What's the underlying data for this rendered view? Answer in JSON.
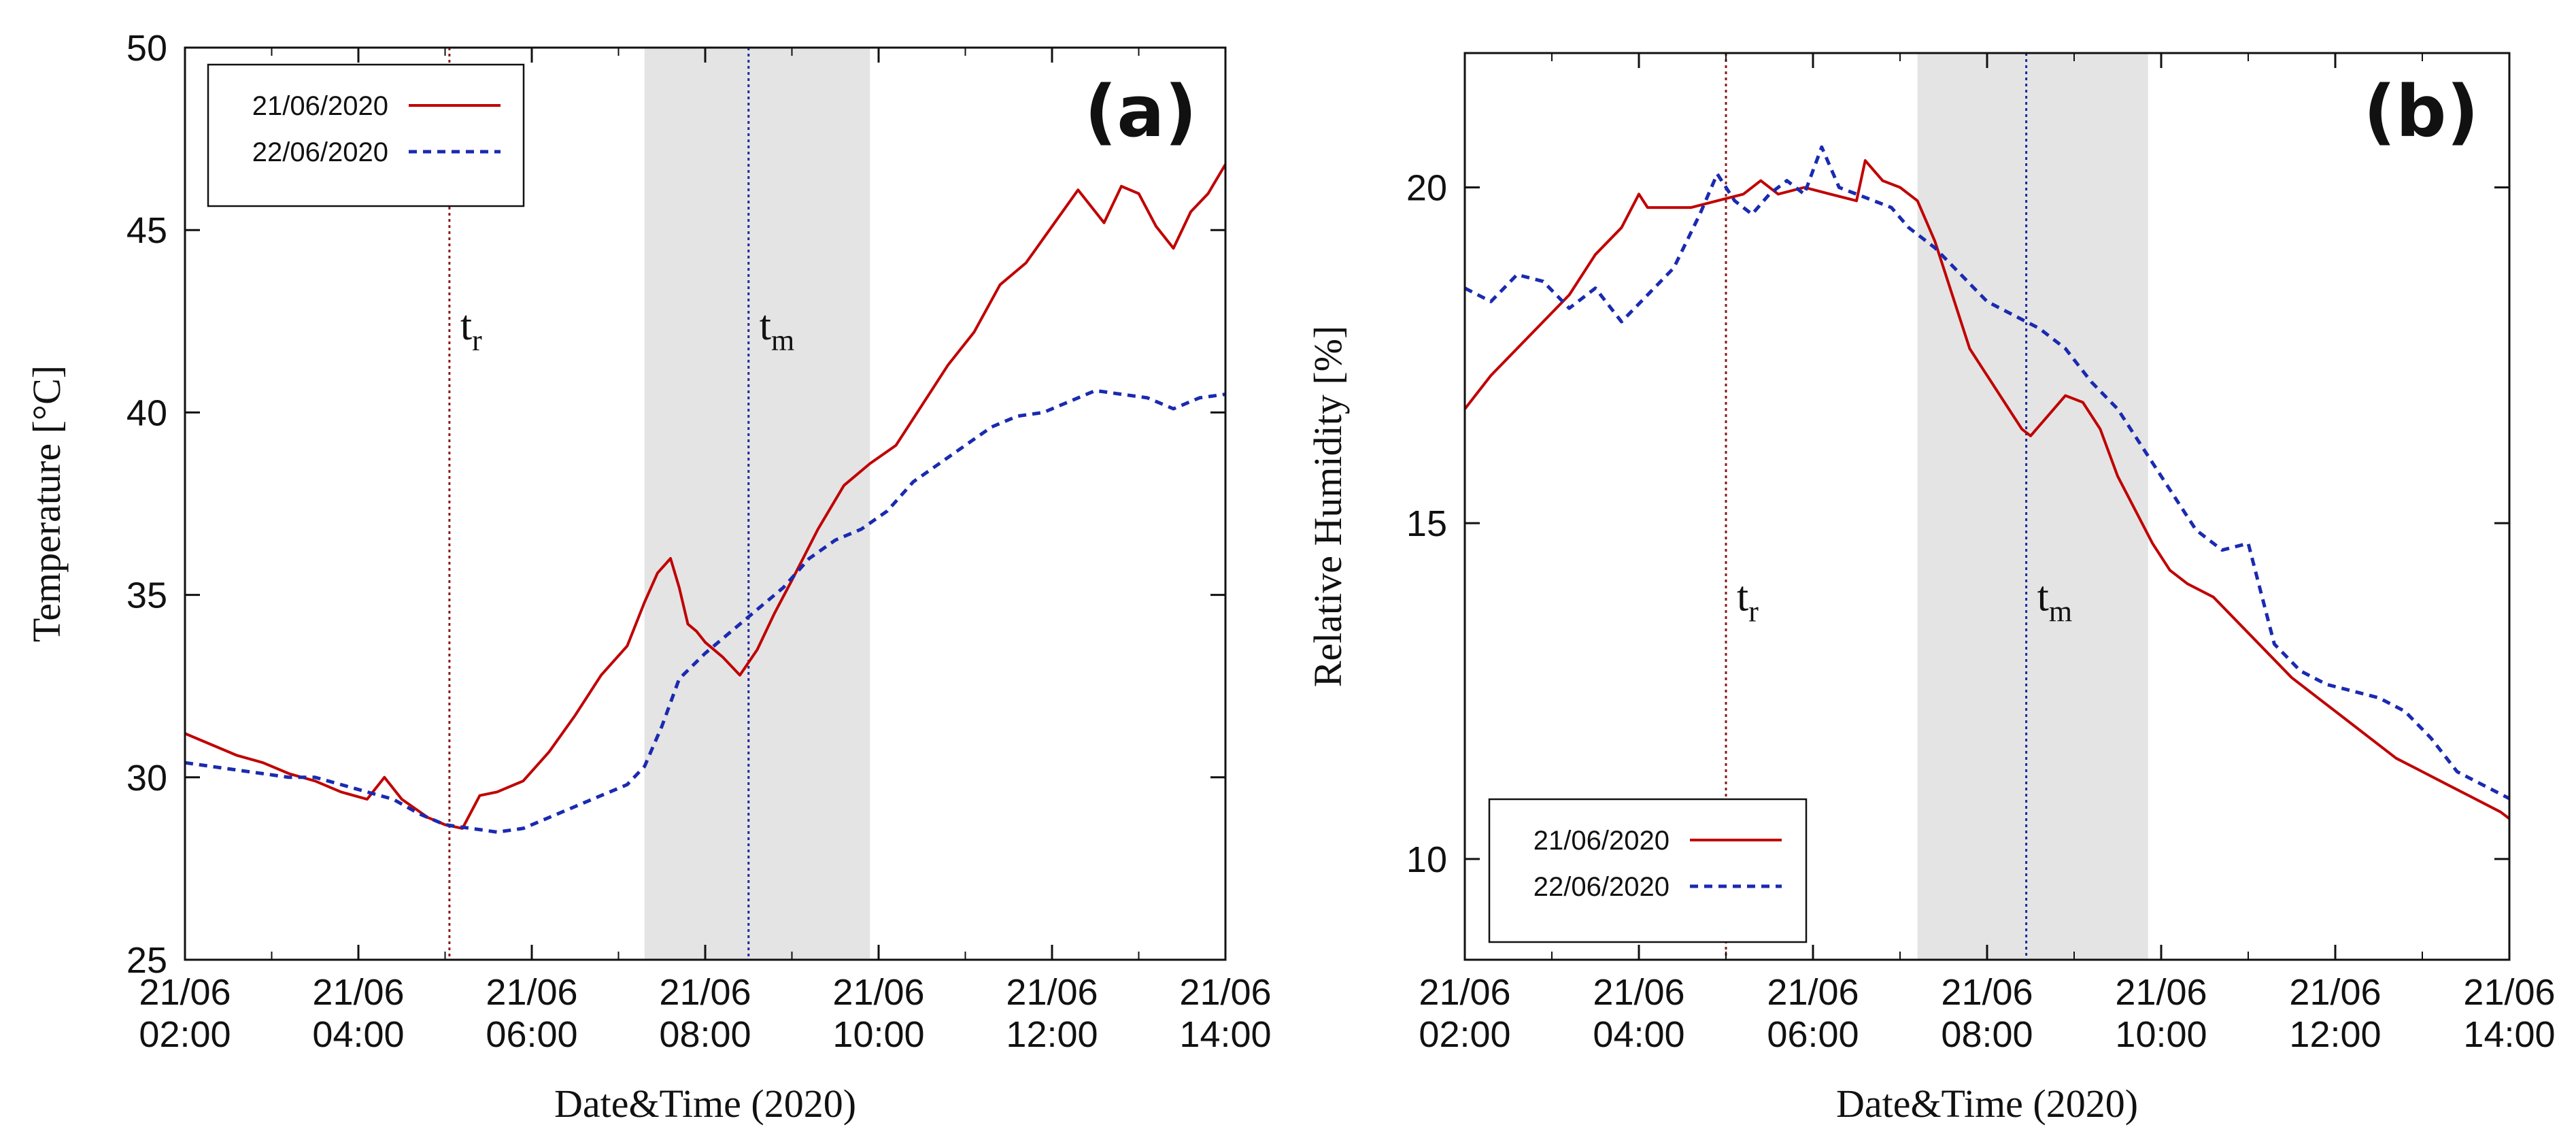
{
  "chart_data": [
    {
      "type": "line",
      "panel_label": "(a)",
      "xlabel": "Date&Time (2020)",
      "ylabel": "Temperature [°C]",
      "xlim": [
        2,
        14
      ],
      "ylim": [
        25,
        50
      ],
      "yticks": [
        25,
        30,
        35,
        40,
        45,
        50
      ],
      "xticks": [
        {
          "x": 2,
          "date": "21/06",
          "time": "02:00"
        },
        {
          "x": 4,
          "date": "21/06",
          "time": "04:00"
        },
        {
          "x": 6,
          "date": "21/06",
          "time": "06:00"
        },
        {
          "x": 8,
          "date": "21/06",
          "time": "08:00"
        },
        {
          "x": 10,
          "date": "21/06",
          "time": "10:00"
        },
        {
          "x": 12,
          "date": "21/06",
          "time": "12:00"
        },
        {
          "x": 14,
          "date": "21/06",
          "time": "14:00"
        }
      ],
      "shaded_region": [
        7.3,
        9.9
      ],
      "markers": [
        {
          "name": "t",
          "sub": "r",
          "x": 5.05,
          "color": "#8b1a1a",
          "label_y": 42
        },
        {
          "name": "t",
          "sub": "m",
          "x": 8.5,
          "color": "#1a2a9a",
          "label_y": 42
        }
      ],
      "legend": {
        "position": "top-left"
      },
      "series": [
        {
          "name": "21/06/2020",
          "color": "#c00000",
          "style": "solid",
          "x": [
            2.0,
            2.3,
            2.6,
            2.9,
            3.2,
            3.5,
            3.8,
            4.1,
            4.3,
            4.5,
            4.8,
            5.0,
            5.2,
            5.4,
            5.6,
            5.9,
            6.2,
            6.5,
            6.8,
            7.1,
            7.3,
            7.45,
            7.6,
            7.7,
            7.8,
            7.9,
            8.0,
            8.2,
            8.4,
            8.6,
            8.8,
            9.0,
            9.3,
            9.6,
            9.9,
            10.2,
            10.5,
            10.8,
            11.1,
            11.4,
            11.7,
            12.0,
            12.3,
            12.6,
            12.8,
            13.0,
            13.2,
            13.4,
            13.6,
            13.8,
            14.0
          ],
          "y": [
            31.2,
            30.9,
            30.6,
            30.4,
            30.1,
            29.9,
            29.6,
            29.4,
            30.0,
            29.4,
            28.9,
            28.7,
            28.6,
            29.5,
            29.6,
            29.9,
            30.7,
            31.7,
            32.8,
            33.6,
            34.8,
            35.6,
            36.0,
            35.2,
            34.2,
            34.0,
            33.7,
            33.3,
            32.8,
            33.5,
            34.5,
            35.4,
            36.8,
            38.0,
            38.6,
            39.1,
            40.2,
            41.3,
            42.2,
            43.5,
            44.1,
            45.1,
            46.1,
            45.2,
            46.2,
            46.0,
            45.1,
            44.5,
            45.5,
            46.0,
            46.8
          ]
        },
        {
          "name": "22/06/2020",
          "color": "#1a2ab0",
          "style": "dashed",
          "x": [
            2.0,
            2.3,
            2.6,
            2.9,
            3.2,
            3.5,
            3.8,
            4.1,
            4.4,
            4.7,
            5.0,
            5.3,
            5.6,
            5.9,
            6.2,
            6.5,
            6.8,
            7.1,
            7.3,
            7.5,
            7.7,
            8.0,
            8.3,
            8.6,
            8.9,
            9.2,
            9.5,
            9.8,
            10.1,
            10.4,
            10.7,
            11.0,
            11.3,
            11.6,
            11.9,
            12.2,
            12.5,
            12.8,
            13.1,
            13.4,
            13.7,
            14.0
          ],
          "y": [
            30.4,
            30.3,
            30.2,
            30.1,
            30.0,
            30.0,
            29.8,
            29.6,
            29.4,
            29.0,
            28.7,
            28.6,
            28.5,
            28.6,
            28.9,
            29.2,
            29.5,
            29.8,
            30.3,
            31.4,
            32.7,
            33.4,
            34.0,
            34.6,
            35.2,
            36.0,
            36.5,
            36.8,
            37.3,
            38.1,
            38.6,
            39.1,
            39.6,
            39.9,
            40.0,
            40.3,
            40.6,
            40.5,
            40.4,
            40.1,
            40.4,
            40.5
          ]
        }
      ]
    },
    {
      "type": "line",
      "panel_label": "(b)",
      "xlabel": "Date&Time (2020)",
      "ylabel": "Relative Humidity [%]",
      "xlim": [
        2,
        14
      ],
      "ylim": [
        8.5,
        22
      ],
      "yticks": [
        10,
        15,
        20
      ],
      "xticks": [
        {
          "x": 2,
          "date": "21/06",
          "time": "02:00"
        },
        {
          "x": 4,
          "date": "21/06",
          "time": "04:00"
        },
        {
          "x": 6,
          "date": "21/06",
          "time": "06:00"
        },
        {
          "x": 8,
          "date": "21/06",
          "time": "08:00"
        },
        {
          "x": 10,
          "date": "21/06",
          "time": "10:00"
        },
        {
          "x": 12,
          "date": "21/06",
          "time": "12:00"
        },
        {
          "x": 14,
          "date": "21/06",
          "time": "14:00"
        }
      ],
      "shaded_region": [
        7.2,
        9.85
      ],
      "markers": [
        {
          "name": "t",
          "sub": "r",
          "x": 5.0,
          "color": "#8b1a1a",
          "label_y": 13.7
        },
        {
          "name": "t",
          "sub": "m",
          "x": 8.45,
          "color": "#1a2a9a",
          "label_y": 13.7
        }
      ],
      "legend": {
        "position": "bottom-left"
      },
      "series": [
        {
          "name": "21/06/2020",
          "color": "#c00000",
          "style": "solid",
          "x": [
            2.0,
            2.3,
            2.6,
            2.9,
            3.2,
            3.5,
            3.8,
            4.0,
            4.1,
            4.3,
            4.6,
            4.9,
            5.2,
            5.4,
            5.6,
            5.9,
            6.2,
            6.5,
            6.6,
            6.8,
            7.0,
            7.2,
            7.4,
            7.6,
            7.8,
            8.0,
            8.2,
            8.4,
            8.5,
            8.7,
            8.9,
            9.1,
            9.3,
            9.5,
            9.7,
            9.9,
            10.1,
            10.3,
            10.6,
            10.9,
            11.2,
            11.5,
            11.8,
            12.1,
            12.4,
            12.7,
            13.0,
            13.3,
            13.6,
            13.9,
            14.0
          ],
          "y": [
            16.7,
            17.2,
            17.6,
            18.0,
            18.4,
            19.0,
            19.4,
            19.9,
            19.7,
            19.7,
            19.7,
            19.8,
            19.9,
            20.1,
            19.9,
            20.0,
            19.9,
            19.8,
            20.4,
            20.1,
            20.0,
            19.8,
            19.2,
            18.4,
            17.6,
            17.2,
            16.8,
            16.4,
            16.3,
            16.6,
            16.9,
            16.8,
            16.4,
            15.7,
            15.2,
            14.7,
            14.3,
            14.1,
            13.9,
            13.5,
            13.1,
            12.7,
            12.4,
            12.1,
            11.8,
            11.5,
            11.3,
            11.1,
            10.9,
            10.7,
            10.6
          ]
        },
        {
          "name": "22/06/2020",
          "color": "#1a2ab0",
          "style": "dashed",
          "x": [
            2.0,
            2.3,
            2.6,
            2.9,
            3.2,
            3.5,
            3.8,
            4.1,
            4.4,
            4.7,
            4.9,
            5.1,
            5.3,
            5.5,
            5.7,
            5.9,
            6.1,
            6.3,
            6.5,
            6.7,
            6.9,
            7.1,
            7.4,
            7.7,
            8.0,
            8.3,
            8.6,
            8.9,
            9.2,
            9.5,
            9.8,
            10.1,
            10.4,
            10.7,
            11.0,
            11.3,
            11.6,
            11.9,
            12.2,
            12.5,
            12.8,
            13.1,
            13.4,
            13.7,
            14.0
          ],
          "y": [
            18.5,
            18.3,
            18.7,
            18.6,
            18.2,
            18.5,
            18.0,
            18.4,
            18.8,
            19.6,
            20.2,
            19.8,
            19.6,
            19.9,
            20.1,
            19.9,
            20.6,
            20.0,
            19.9,
            19.8,
            19.7,
            19.4,
            19.1,
            18.7,
            18.3,
            18.1,
            17.9,
            17.6,
            17.1,
            16.7,
            16.1,
            15.5,
            14.9,
            14.6,
            14.7,
            13.2,
            12.8,
            12.6,
            12.5,
            12.4,
            12.2,
            11.8,
            11.3,
            11.1,
            10.9
          ]
        }
      ]
    }
  ]
}
